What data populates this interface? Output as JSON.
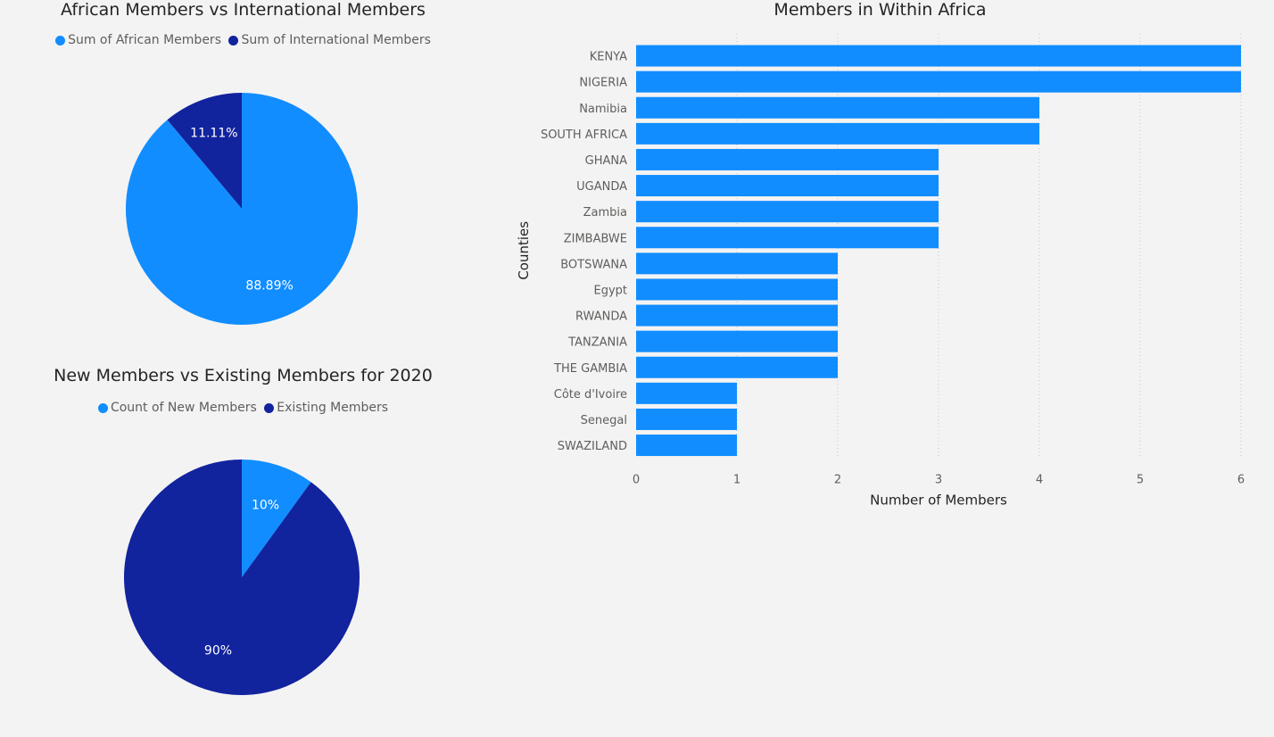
{
  "colors": {
    "light_blue": "#118dff",
    "dark_blue": "#12239e",
    "grid": "#c8c6c4",
    "tick": "#605e5c"
  },
  "chart_data": [
    {
      "type": "pie",
      "title": "African Members vs International Members",
      "legend": [
        "Sum of African Members",
        "Sum of International Members"
      ],
      "legend_placement": "top-center",
      "slices": [
        {
          "name": "Sum of International Members",
          "value": 11.11,
          "label": "11.11%",
          "color": "#12239e"
        },
        {
          "name": "Sum of African Members",
          "value": 88.89,
          "label": "88.89%",
          "color": "#118dff"
        }
      ]
    },
    {
      "type": "pie",
      "title": "New Members vs Existing Members for 2020",
      "legend": [
        "Count of New Members",
        "Existing Members"
      ],
      "legend_placement": "top-center",
      "slices": [
        {
          "name": "Count of New Members",
          "value": 10,
          "label": "10%",
          "color": "#118dff"
        },
        {
          "name": "Existing Members",
          "value": 90,
          "label": "90%",
          "color": "#12239e"
        }
      ]
    },
    {
      "type": "bar",
      "orientation": "horizontal",
      "title": "Members in Within Africa",
      "xlabel": "Number of Members",
      "ylabel": "Counties",
      "categories": [
        "KENYA",
        "NIGERIA",
        "Namibia",
        "SOUTH AFRICA",
        "GHANA",
        "UGANDA",
        "Zambia",
        "ZIMBABWE",
        "BOTSWANA",
        "Egypt",
        "RWANDA",
        "TANZANIA",
        "THE GAMBIA",
        "Côte d'Ivoire",
        "Senegal",
        "SWAZILAND"
      ],
      "values": [
        6,
        6,
        4,
        4,
        3,
        3,
        3,
        3,
        2,
        2,
        2,
        2,
        2,
        1,
        1,
        1
      ],
      "xlim": [
        0,
        6
      ],
      "xticks": [
        "0",
        "1",
        "2",
        "3",
        "4",
        "5",
        "6"
      ],
      "grid": true,
      "color": "#118dff"
    }
  ]
}
